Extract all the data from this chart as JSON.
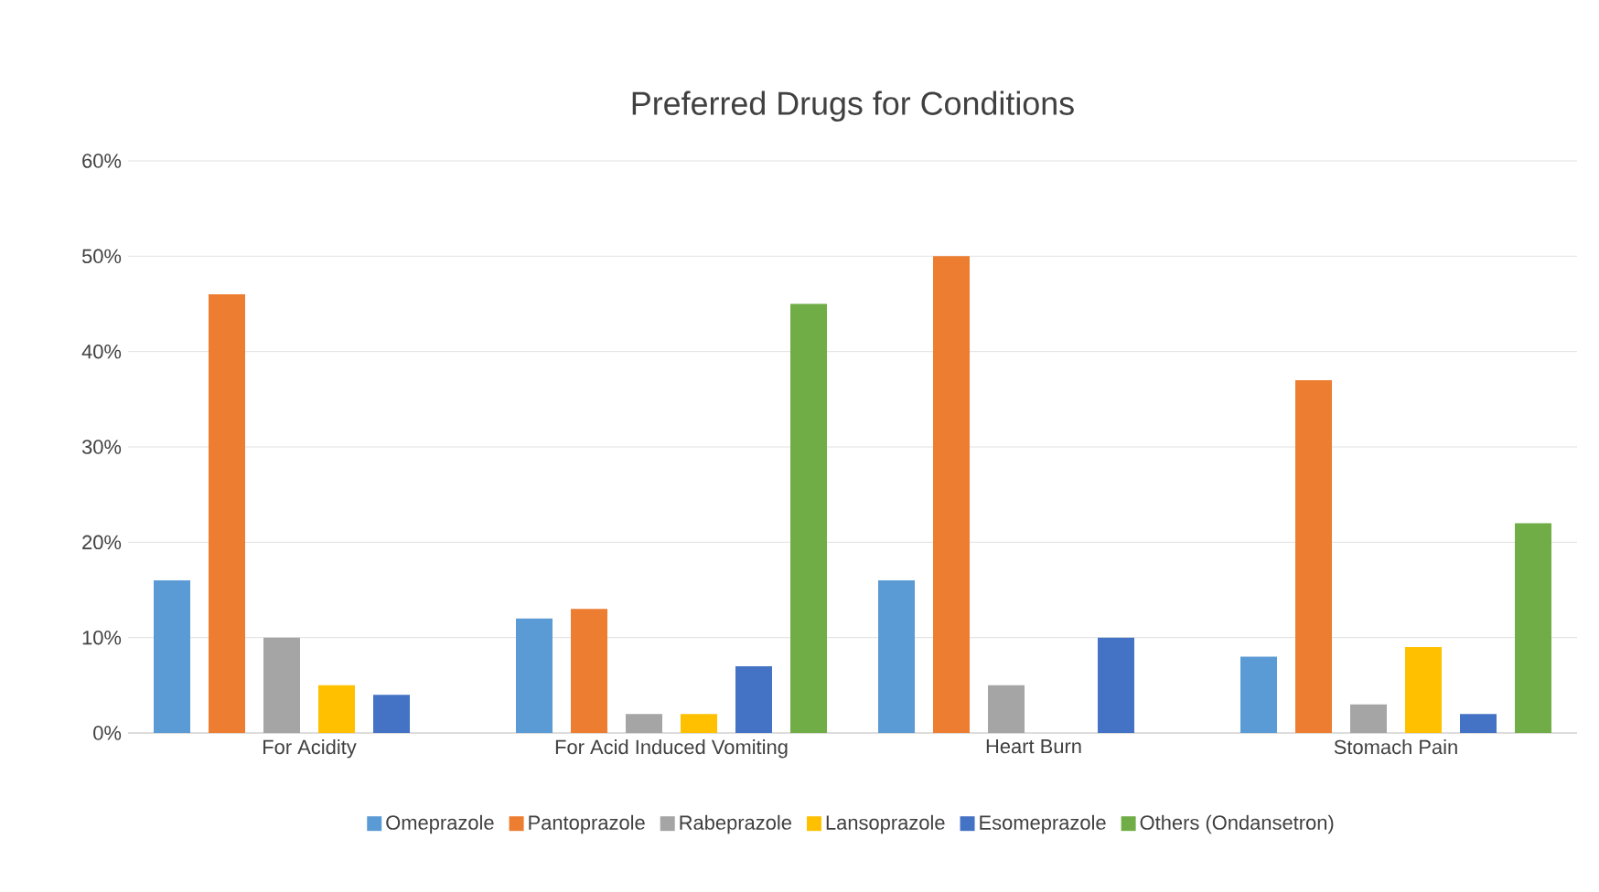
{
  "chart_data": {
    "type": "bar",
    "title": "Preferred Drugs for Conditions",
    "categories": [
      "For Acidity",
      "For Acid Induced Vomiting",
      "Heart Burn",
      "Stomach Pain"
    ],
    "series": [
      {
        "name": "Omeprazole",
        "color": "#5b9bd5",
        "values": [
          16,
          12,
          16,
          8
        ]
      },
      {
        "name": "Pantoprazole",
        "color": "#ed7d31",
        "values": [
          46,
          13,
          50,
          37
        ]
      },
      {
        "name": "Rabeprazole",
        "color": "#a5a5a5",
        "values": [
          10,
          2,
          5,
          3
        ]
      },
      {
        "name": "Lansoprazole",
        "color": "#ffc000",
        "values": [
          5,
          2,
          0,
          9
        ]
      },
      {
        "name": "Esomeprazole",
        "color": "#4472c4",
        "values": [
          4,
          7,
          10,
          2
        ]
      },
      {
        "name": "Others (Ondansetron)",
        "color": "#70ad47",
        "values": [
          0,
          45,
          0,
          22
        ]
      }
    ],
    "ylim": [
      0,
      60
    ],
    "yticks": [
      {
        "value": 0,
        "label": "0%"
      },
      {
        "value": 10,
        "label": "10%"
      },
      {
        "value": 20,
        "label": "20%"
      },
      {
        "value": 30,
        "label": "30%"
      },
      {
        "value": 40,
        "label": "40%"
      },
      {
        "value": 50,
        "label": "50%"
      },
      {
        "value": 60,
        "label": "60%"
      }
    ],
    "grid": "y",
    "legend": "bottom"
  }
}
